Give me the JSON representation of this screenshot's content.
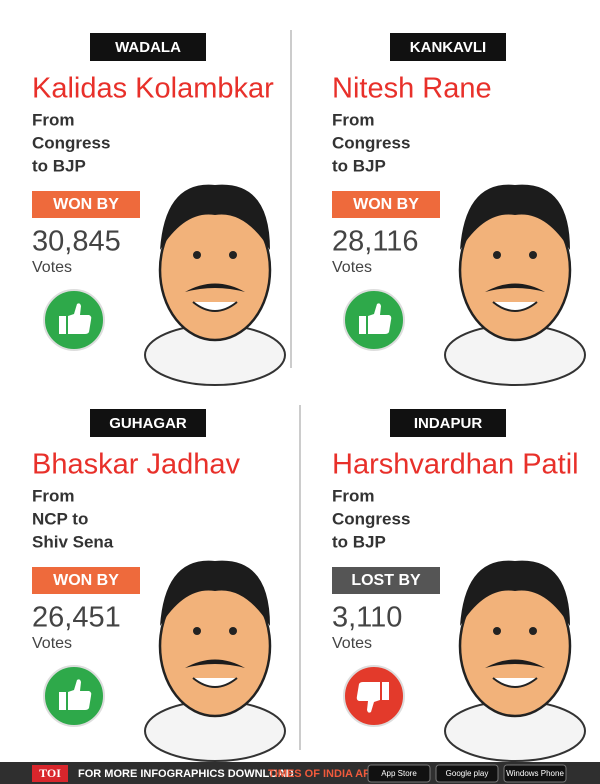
{
  "panels": [
    {
      "constituency": "WADALA",
      "name": "Kalidas Kolambkar",
      "from": [
        "From",
        "Congress",
        "to BJP"
      ],
      "result": "WON BY",
      "votes": "30,845",
      "unit": "Votes"
    },
    {
      "constituency": "KANKAVLI",
      "name": "Nitesh Rane",
      "from": [
        "From",
        "Congress",
        "to BJP"
      ],
      "result": "WON BY",
      "votes": "28,116",
      "unit": "Votes"
    },
    {
      "constituency": "GUHAGAR",
      "name": "Bhaskar Jadhav",
      "from": [
        "From",
        "NCP to",
        "Shiv Sena"
      ],
      "result": "WON BY",
      "votes": "26,451",
      "unit": "Votes"
    },
    {
      "constituency": "INDAPUR",
      "name": "Harshvardhan Patil",
      "from": [
        "From",
        "Congress",
        "to BJP"
      ],
      "result": "LOST BY",
      "votes": "3,110",
      "unit": "Votes"
    }
  ],
  "footer": {
    "logo": "TOI",
    "text": "FOR MORE INFOGRAPHICS DOWNLOAD",
    "app": "TIMES OF INDIA APP",
    "stores": [
      "App Store",
      "Google play",
      "Windows Phone"
    ]
  }
}
